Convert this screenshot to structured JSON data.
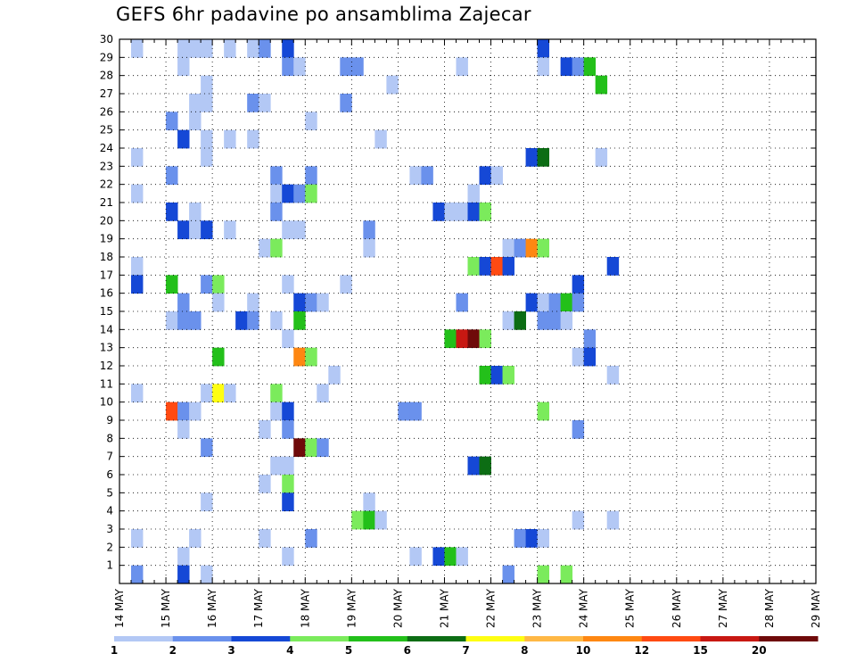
{
  "chart_data": {
    "type": "heatmap",
    "title": "GEFS 6hr padavine po ansamblima Zajecar",
    "xlabel": "",
    "ylabel": "",
    "x_tick_labels": [
      "14 MAY",
      "15 MAY",
      "16 MAY",
      "17 MAY",
      "18 MAY",
      "19 MAY",
      "20 MAY",
      "21 MAY",
      "22 MAY",
      "23 MAY",
      "24 MAY",
      "25 MAY",
      "26 MAY",
      "27 MAY",
      "28 MAY",
      "29 MAY"
    ],
    "y_tick_labels": [
      "1",
      "2",
      "3",
      "4",
      "5",
      "6",
      "7",
      "8",
      "9",
      "10",
      "11",
      "12",
      "13",
      "14",
      "15",
      "16",
      "17",
      "18",
      "19",
      "20",
      "21",
      "22",
      "23",
      "24",
      "25",
      "26",
      "27",
      "28",
      "29",
      "30"
    ],
    "x_unit": "6-hour steps starting 14 MAY 00Z",
    "y_unit": "ensemble member",
    "colorbar": {
      "tick_labels": [
        "1",
        "2",
        "3",
        "4",
        "5",
        "6",
        "7",
        "8",
        "10",
        "12",
        "15",
        "20"
      ],
      "colors": [
        "#b3c8f5",
        "#6a91ec",
        "#1548d6",
        "#7beb5c",
        "#23c01a",
        "#0c6d14",
        "#fefe12",
        "#ffb845",
        "#fe8712",
        "#ff4a12",
        "#c81812",
        "#6f0a0a"
      ]
    },
    "cells": [
      [
        1,
        30,
        1
      ],
      [
        5,
        30,
        1
      ],
      [
        6,
        30,
        1
      ],
      [
        7,
        30,
        1
      ],
      [
        9,
        30,
        1
      ],
      [
        11,
        30,
        1
      ],
      [
        12,
        30,
        2
      ],
      [
        14,
        30,
        3
      ],
      [
        36,
        30,
        3
      ],
      [
        36,
        29,
        1
      ],
      [
        38,
        29,
        3
      ],
      [
        39,
        29,
        2
      ],
      [
        40,
        29,
        5
      ],
      [
        5,
        29,
        1
      ],
      [
        14,
        29,
        2
      ],
      [
        15,
        29,
        1
      ],
      [
        19,
        29,
        2
      ],
      [
        20,
        29,
        2
      ],
      [
        29,
        29,
        1
      ],
      [
        41,
        28,
        5
      ],
      [
        7,
        28,
        1
      ],
      [
        23,
        28,
        1
      ],
      [
        6,
        27,
        1
      ],
      [
        7,
        27,
        1
      ],
      [
        11,
        27,
        2
      ],
      [
        12,
        27,
        1
      ],
      [
        19,
        27,
        2
      ],
      [
        4,
        26,
        2
      ],
      [
        6,
        26,
        1
      ],
      [
        16,
        26,
        1
      ],
      [
        5,
        25,
        3
      ],
      [
        7,
        25,
        1
      ],
      [
        9,
        25,
        1
      ],
      [
        11,
        25,
        1
      ],
      [
        22,
        25,
        1
      ],
      [
        1,
        24,
        1
      ],
      [
        7,
        24,
        1
      ],
      [
        35,
        24,
        3
      ],
      [
        36,
        24,
        6
      ],
      [
        41,
        24,
        1
      ],
      [
        4,
        23,
        2
      ],
      [
        13,
        23,
        2
      ],
      [
        16,
        23,
        2
      ],
      [
        25,
        23,
        1
      ],
      [
        26,
        23,
        2
      ],
      [
        31,
        23,
        3
      ],
      [
        32,
        23,
        1
      ],
      [
        1,
        22,
        1
      ],
      [
        13,
        22,
        1
      ],
      [
        14,
        22,
        3
      ],
      [
        15,
        22,
        2
      ],
      [
        16,
        22,
        4
      ],
      [
        30,
        22,
        1
      ],
      [
        4,
        21,
        3
      ],
      [
        6,
        21,
        1
      ],
      [
        13,
        21,
        2
      ],
      [
        27,
        21,
        3
      ],
      [
        28,
        21,
        1
      ],
      [
        29,
        21,
        1
      ],
      [
        30,
        21,
        3
      ],
      [
        31,
        21,
        4
      ],
      [
        5,
        20,
        3
      ],
      [
        6,
        20,
        1
      ],
      [
        7,
        20,
        3
      ],
      [
        9,
        20,
        1
      ],
      [
        14,
        20,
        1
      ],
      [
        15,
        20,
        1
      ],
      [
        21,
        20,
        2
      ],
      [
        12,
        19,
        1
      ],
      [
        13,
        19,
        4
      ],
      [
        21,
        19,
        1
      ],
      [
        33,
        19,
        1
      ],
      [
        34,
        19,
        2
      ],
      [
        35,
        19,
        10
      ],
      [
        36,
        19,
        4
      ],
      [
        1,
        18,
        1
      ],
      [
        30,
        18,
        4
      ],
      [
        31,
        18,
        3
      ],
      [
        32,
        18,
        14
      ],
      [
        33,
        18,
        3
      ],
      [
        42,
        18,
        3
      ],
      [
        1,
        17,
        3
      ],
      [
        4,
        17,
        5
      ],
      [
        7,
        17,
        2
      ],
      [
        8,
        17,
        4
      ],
      [
        14,
        17,
        1
      ],
      [
        19,
        17,
        1
      ],
      [
        39,
        17,
        3
      ],
      [
        5,
        16,
        2
      ],
      [
        8,
        16,
        1
      ],
      [
        11,
        16,
        1
      ],
      [
        15,
        16,
        3
      ],
      [
        16,
        16,
        2
      ],
      [
        17,
        16,
        1
      ],
      [
        29,
        16,
        2
      ],
      [
        35,
        16,
        3
      ],
      [
        36,
        16,
        1
      ],
      [
        37,
        16,
        2
      ],
      [
        38,
        16,
        5
      ],
      [
        39,
        16,
        2
      ],
      [
        4,
        15,
        1
      ],
      [
        5,
        15,
        2
      ],
      [
        6,
        15,
        2
      ],
      [
        10,
        15,
        3
      ],
      [
        11,
        15,
        2
      ],
      [
        13,
        15,
        1
      ],
      [
        15,
        15,
        5
      ],
      [
        33,
        15,
        1
      ],
      [
        34,
        15,
        6
      ],
      [
        36,
        15,
        2
      ],
      [
        37,
        15,
        2
      ],
      [
        38,
        15,
        1
      ],
      [
        14,
        14,
        1
      ],
      [
        28,
        14,
        5
      ],
      [
        29,
        14,
        15
      ],
      [
        30,
        14,
        20
      ],
      [
        31,
        14,
        4
      ],
      [
        40,
        14,
        2
      ],
      [
        8,
        13,
        5
      ],
      [
        15,
        13,
        10
      ],
      [
        16,
        13,
        4
      ],
      [
        39,
        13,
        1
      ],
      [
        40,
        13,
        3
      ],
      [
        18,
        12,
        1
      ],
      [
        31,
        12,
        5
      ],
      [
        32,
        12,
        3
      ],
      [
        33,
        12,
        4
      ],
      [
        42,
        12,
        1
      ],
      [
        1,
        11,
        1
      ],
      [
        7,
        11,
        1
      ],
      [
        8,
        11,
        7
      ],
      [
        9,
        11,
        1
      ],
      [
        13,
        11,
        4
      ],
      [
        17,
        11,
        1
      ],
      [
        4,
        10,
        14
      ],
      [
        5,
        10,
        2
      ],
      [
        6,
        10,
        1
      ],
      [
        13,
        10,
        1
      ],
      [
        14,
        10,
        3
      ],
      [
        24,
        10,
        2
      ],
      [
        25,
        10,
        2
      ],
      [
        36,
        10,
        4
      ],
      [
        5,
        9,
        1
      ],
      [
        12,
        9,
        1
      ],
      [
        14,
        9,
        2
      ],
      [
        39,
        9,
        2
      ],
      [
        7,
        8,
        2
      ],
      [
        15,
        8,
        20
      ],
      [
        16,
        8,
        4
      ],
      [
        17,
        8,
        2
      ],
      [
        13,
        7,
        1
      ],
      [
        14,
        7,
        1
      ],
      [
        30,
        7,
        3
      ],
      [
        31,
        7,
        6
      ],
      [
        12,
        6,
        1
      ],
      [
        14,
        6,
        4
      ],
      [
        7,
        5,
        1
      ],
      [
        14,
        5,
        3
      ],
      [
        21,
        5,
        1
      ],
      [
        20,
        4,
        4
      ],
      [
        21,
        4,
        5
      ],
      [
        22,
        4,
        1
      ],
      [
        39,
        4,
        1
      ],
      [
        42,
        4,
        1
      ],
      [
        1,
        3,
        1
      ],
      [
        6,
        3,
        1
      ],
      [
        12,
        3,
        1
      ],
      [
        16,
        3,
        2
      ],
      [
        34,
        3,
        2
      ],
      [
        35,
        3,
        3
      ],
      [
        36,
        3,
        1
      ],
      [
        5,
        2,
        1
      ],
      [
        14,
        2,
        1
      ],
      [
        25,
        2,
        1
      ],
      [
        27,
        2,
        3
      ],
      [
        28,
        2,
        5
      ],
      [
        29,
        2,
        1
      ],
      [
        1,
        1,
        2
      ],
      [
        5,
        1,
        3
      ],
      [
        7,
        1,
        1
      ],
      [
        33,
        1,
        2
      ],
      [
        36,
        1,
        4
      ],
      [
        38,
        1,
        4
      ]
    ]
  }
}
